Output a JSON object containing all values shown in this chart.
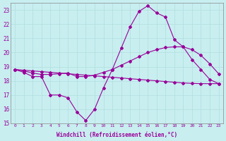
{
  "xlabel": "Windchill (Refroidissement éolien,°C)",
  "background_color": "#c8eef0",
  "grid_color": "#b0dede",
  "line_color": "#990099",
  "x": [
    0,
    1,
    2,
    3,
    4,
    5,
    6,
    7,
    8,
    9,
    10,
    11,
    12,
    13,
    14,
    15,
    16,
    17,
    18,
    19,
    20,
    21,
    22,
    23
  ],
  "line1": [
    18.8,
    18.6,
    18.3,
    18.3,
    17.0,
    17.0,
    16.8,
    15.8,
    15.2,
    16.0,
    17.5,
    18.8,
    20.3,
    21.8,
    22.9,
    23.3,
    22.8,
    22.5,
    20.9,
    20.4,
    19.5,
    18.8,
    18.1,
    17.8
  ],
  "line2": [
    18.8,
    18.7,
    18.55,
    18.45,
    18.45,
    18.5,
    18.55,
    18.3,
    18.3,
    18.4,
    18.6,
    18.8,
    19.1,
    19.4,
    19.7,
    20.0,
    20.2,
    20.35,
    20.4,
    20.4,
    20.2,
    19.8,
    19.2,
    18.5
  ],
  "line3": [
    18.8,
    18.75,
    18.7,
    18.65,
    18.6,
    18.55,
    18.5,
    18.45,
    18.4,
    18.35,
    18.3,
    18.25,
    18.2,
    18.15,
    18.1,
    18.05,
    18.0,
    17.95,
    17.9,
    17.85,
    17.82,
    17.8,
    17.8,
    17.8
  ],
  "ylim": [
    15,
    23.5
  ],
  "xlim": [
    -0.5,
    23.5
  ],
  "yticks": [
    15,
    16,
    17,
    18,
    19,
    20,
    21,
    22,
    23
  ],
  "xticks": [
    0,
    1,
    2,
    3,
    4,
    5,
    6,
    7,
    8,
    9,
    10,
    11,
    12,
    13,
    14,
    15,
    16,
    17,
    18,
    19,
    20,
    21,
    22,
    23
  ]
}
